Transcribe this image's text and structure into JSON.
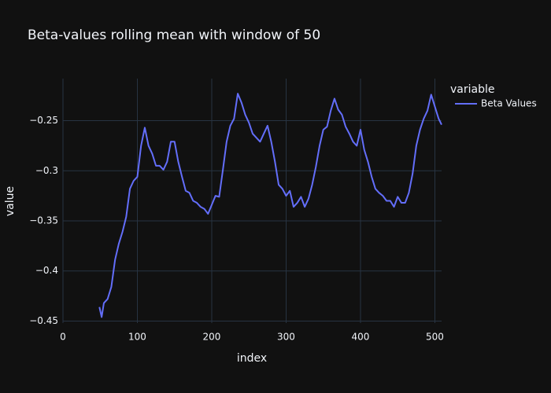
{
  "chart_data": {
    "type": "line",
    "title": "Beta-values rolling mean with window of 50",
    "x_label": "index",
    "y_label": "value",
    "legend_title": "variable",
    "legend_position": "top-right",
    "grid": true,
    "x": [
      49,
      52,
      55,
      60,
      65,
      70,
      75,
      80,
      85,
      90,
      95,
      100,
      105,
      110,
      115,
      120,
      125,
      130,
      135,
      140,
      145,
      150,
      155,
      160,
      165,
      170,
      175,
      180,
      185,
      190,
      195,
      200,
      205,
      210,
      215,
      220,
      225,
      230,
      235,
      240,
      245,
      250,
      255,
      260,
      265,
      270,
      275,
      280,
      285,
      290,
      295,
      300,
      305,
      310,
      315,
      320,
      325,
      330,
      335,
      340,
      345,
      350,
      355,
      360,
      365,
      370,
      375,
      380,
      385,
      390,
      395,
      400,
      405,
      410,
      415,
      420,
      425,
      430,
      435,
      440,
      445,
      450,
      455,
      460,
      465,
      470,
      475,
      480,
      485,
      490,
      495,
      500,
      505,
      509
    ],
    "series": [
      {
        "name": "Beta Values",
        "color": "#636efa",
        "values": [
          -0.436,
          -0.446,
          -0.432,
          -0.428,
          -0.416,
          -0.389,
          -0.373,
          -0.361,
          -0.346,
          -0.318,
          -0.31,
          -0.306,
          -0.275,
          -0.257,
          -0.275,
          -0.283,
          -0.295,
          -0.295,
          -0.299,
          -0.291,
          -0.271,
          -0.271,
          -0.291,
          -0.306,
          -0.32,
          -0.322,
          -0.33,
          -0.332,
          -0.336,
          -0.338,
          -0.343,
          -0.334,
          -0.325,
          -0.326,
          -0.299,
          -0.271,
          -0.255,
          -0.248,
          -0.223,
          -0.232,
          -0.244,
          -0.252,
          -0.263,
          -0.267,
          -0.271,
          -0.263,
          -0.255,
          -0.271,
          -0.291,
          -0.314,
          -0.318,
          -0.325,
          -0.32,
          -0.336,
          -0.332,
          -0.326,
          -0.336,
          -0.328,
          -0.314,
          -0.296,
          -0.275,
          -0.259,
          -0.256,
          -0.24,
          -0.228,
          -0.239,
          -0.244,
          -0.256,
          -0.263,
          -0.271,
          -0.275,
          -0.259,
          -0.279,
          -0.291,
          -0.306,
          -0.318,
          -0.322,
          -0.325,
          -0.33,
          -0.33,
          -0.336,
          -0.326,
          -0.332,
          -0.332,
          -0.322,
          -0.303,
          -0.275,
          -0.259,
          -0.248,
          -0.24,
          -0.224,
          -0.236,
          -0.248,
          -0.254
        ]
      }
    ],
    "xlim": [
      0,
      509
    ],
    "xticks": [
      0,
      100,
      200,
      300,
      400,
      500
    ],
    "ylim": [
      -0.452,
      -0.208
    ],
    "yticks": [
      {
        "value": -0.45,
        "label": "−0.45"
      },
      {
        "value": -0.4,
        "label": "−0.4"
      },
      {
        "value": -0.35,
        "label": "−0.35"
      },
      {
        "value": -0.3,
        "label": "−0.3"
      },
      {
        "value": -0.25,
        "label": "−0.25"
      }
    ]
  }
}
